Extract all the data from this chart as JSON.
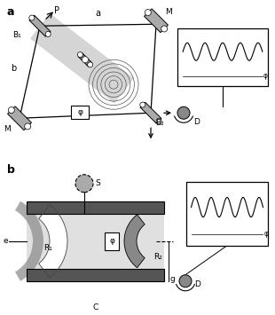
{
  "bg_color": "#ffffff",
  "gray_beam": "#c8c8c8",
  "gray_mirror": "#aaaaaa",
  "gray_dark": "#666666",
  "gray_mid": "#999999",
  "gray_light": "#dddddd",
  "gray_cavity_dark": "#555555",
  "gray_cavity_bright": "#e8e8e8",
  "panel_a_label": "a",
  "panel_b_label": "b",
  "label_a_arm": "a",
  "label_b_arm": "b",
  "label_P": "P",
  "label_B1": "B₁",
  "label_M_top": "M",
  "label_M_bot": "M",
  "label_phi_box": "φ",
  "label_B2": "B₂",
  "label_D_a": "D",
  "label_D_b": "D",
  "label_phi_a": "φ",
  "label_phi_b_osc": "φ",
  "label_S": "S",
  "label_R1": "R₁",
  "label_R2": "R₂",
  "label_e": "e",
  "label_g": "g",
  "label_C": "C",
  "label_phi_b_box": "φ"
}
